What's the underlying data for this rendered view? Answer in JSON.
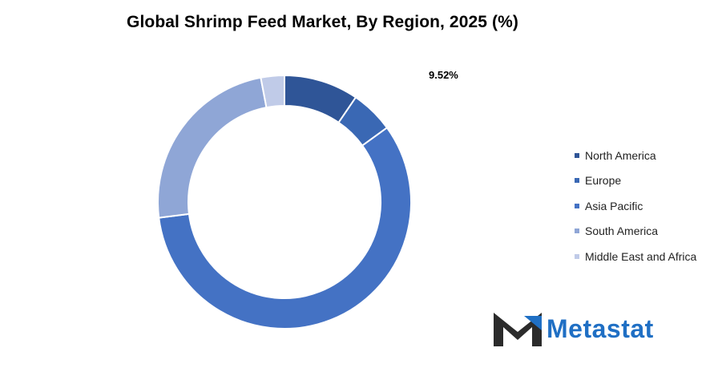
{
  "chart_data": {
    "type": "pie",
    "subtype": "donut",
    "title": "Global Shrimp Feed Market, By Region, 2025 (%)",
    "categories": [
      "North America",
      "Europe",
      "Asia Pacific",
      "South America",
      "Middle East and Africa"
    ],
    "values": [
      9.52,
      5.5,
      58.0,
      23.98,
      3.0
    ],
    "colors": [
      "#2f5597",
      "#3a68b4",
      "#4472c4",
      "#8fa6d6",
      "#c0cbe8"
    ],
    "data_labels": [
      {
        "category": "North America",
        "text": "9.52%"
      }
    ],
    "legend_position": "right",
    "start_angle": "top, clockwise"
  },
  "brand": {
    "name": "Metastat",
    "color": "#1f6fc4",
    "mark_color": "#2b2b2b"
  }
}
